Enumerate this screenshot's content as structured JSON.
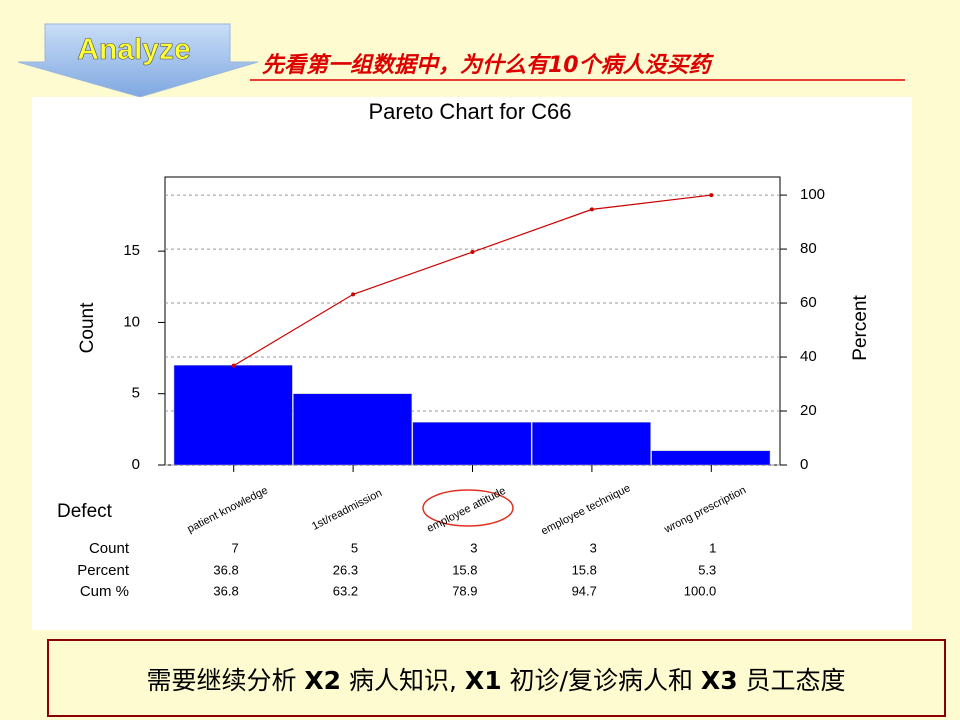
{
  "slide": {
    "tag": "Analyze",
    "heading": "先看第一组数据中，为什么有10个病人没买药",
    "footer": [
      "需要继续分析 ",
      "X2",
      " 病人知识, ",
      "X1",
      " 初诊/复诊病人和 ",
      "X3",
      " 员工态度"
    ]
  },
  "chart_data": {
    "type": "pareto",
    "title": "Pareto Chart for C66",
    "x_label": "Defect",
    "y_label": "Count",
    "y2_label": "Percent",
    "categories": [
      "patient knowledge",
      "1st/readmission",
      "employee attitude",
      "employee technique",
      "wrong prescription"
    ],
    "series": [
      {
        "name": "Count",
        "color": "#0000ff",
        "values": [
          7,
          5,
          3,
          3,
          1
        ]
      },
      {
        "name": "Percent",
        "values": [
          36.8,
          26.3,
          15.8,
          15.8,
          5.3
        ]
      },
      {
        "name": "Cum %",
        "color": "#cc0000",
        "axis": "y2",
        "values": [
          36.8,
          63.2,
          78.9,
          94.7,
          100
        ],
        "value_labels": [
          "36.8",
          "63.2",
          "78.9",
          "94.7",
          "100.0"
        ]
      }
    ],
    "ylim": [
      0,
      20.2
    ],
    "yticks": [
      0,
      5,
      10,
      15
    ],
    "y2lim": [
      0,
      106.7
    ],
    "y2ticks": [
      0,
      20,
      40,
      60,
      80,
      100
    ],
    "grid": true
  }
}
